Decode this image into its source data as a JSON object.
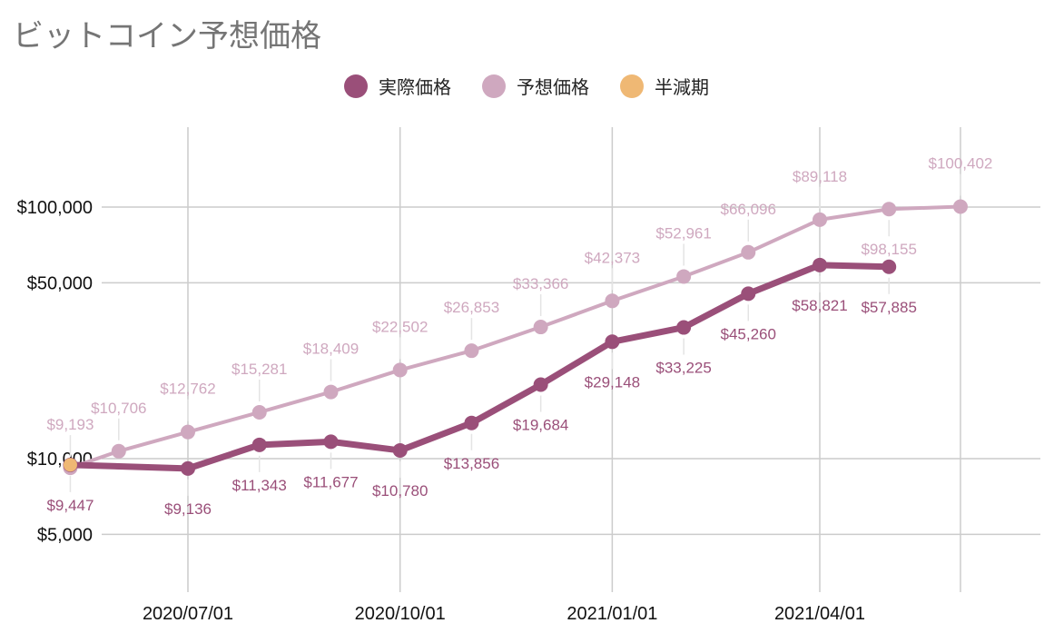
{
  "chart_data": {
    "type": "line",
    "title": "ビットコイン予想価格",
    "y_scale": "log",
    "ylim": [
      3200,
      200000
    ],
    "y_ticks": [
      5000,
      10000,
      50000,
      100000
    ],
    "y_tick_labels": [
      "$5,000",
      "$10,000",
      "$50,000",
      "$100,000"
    ],
    "x_ticks": [
      "2020-07-01",
      "2020-10-01",
      "2021-01-01",
      "2021-04-01"
    ],
    "x_tick_labels": [
      "2020/07/01",
      "2020/10/01",
      "2021/01/01",
      "2021/04/01"
    ],
    "grid": true,
    "legend_position": "top-center",
    "series": [
      {
        "name": "実際価格",
        "color": "#9a4f79",
        "points": [
          {
            "x": "2020-05-11",
            "y": 9447,
            "label": "$9,447"
          },
          {
            "x": "2020-07-01",
            "y": 9136,
            "label": "$9,136"
          },
          {
            "x": "2020-08-01",
            "y": 11343,
            "label": "$11,343"
          },
          {
            "x": "2020-09-01",
            "y": 11677,
            "label": "$11,677"
          },
          {
            "x": "2020-10-01",
            "y": 10780,
            "label": "$10,780"
          },
          {
            "x": "2020-11-01",
            "y": 13856,
            "label": "$13,856"
          },
          {
            "x": "2020-12-01",
            "y": 19684,
            "label": "$19,684"
          },
          {
            "x": "2021-01-01",
            "y": 29148,
            "label": "$29,148"
          },
          {
            "x": "2021-02-01",
            "y": 33225,
            "label": "$33,225"
          },
          {
            "x": "2021-03-01",
            "y": 45260,
            "label": "$45,260"
          },
          {
            "x": "2021-04-01",
            "y": 58821,
            "label": "$58,821"
          },
          {
            "x": "2021-05-01",
            "y": 57885,
            "label": "$57,885"
          }
        ]
      },
      {
        "name": "予想価格",
        "color": "#cfa8bf",
        "points": [
          {
            "x": "2020-05-11",
            "y": 9193,
            "label": "$9,193"
          },
          {
            "x": "2020-06-01",
            "y": 10706,
            "label": "$10,706"
          },
          {
            "x": "2020-07-01",
            "y": 12762,
            "label": "$12,762"
          },
          {
            "x": "2020-08-01",
            "y": 15281,
            "label": "$15,281"
          },
          {
            "x": "2020-09-01",
            "y": 18409,
            "label": "$18,409"
          },
          {
            "x": "2020-10-01",
            "y": 22502,
            "label": "$22,502"
          },
          {
            "x": "2020-11-01",
            "y": 26853,
            "label": "$26,853"
          },
          {
            "x": "2020-12-01",
            "y": 33366,
            "label": "$33,366"
          },
          {
            "x": "2021-01-01",
            "y": 42373,
            "label": "$42,373"
          },
          {
            "x": "2021-02-01",
            "y": 52961,
            "label": "$52,961"
          },
          {
            "x": "2021-03-01",
            "y": 66096,
            "label": "$66,096"
          },
          {
            "x": "2021-04-01",
            "y": 89118,
            "label": "$89,118"
          },
          {
            "x": "2021-05-01",
            "y": 98155,
            "label": "$98,155"
          },
          {
            "x": "2021-06-01",
            "y": 100402,
            "label": "$100,402"
          }
        ]
      },
      {
        "name": "半減期",
        "color": "#efb874",
        "points": [
          {
            "x": "2020-05-11",
            "y": 9447,
            "label": ""
          }
        ]
      }
    ]
  }
}
